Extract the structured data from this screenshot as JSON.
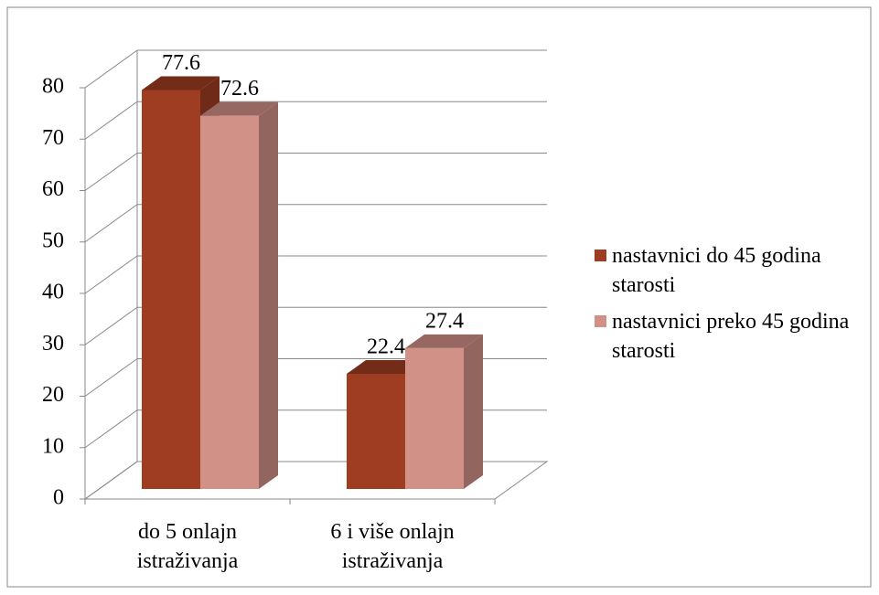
{
  "chart_data": {
    "type": "bar3d",
    "categories": [
      "do 5 onlajn istraživanja",
      "6 i više onlajn istraživanja"
    ],
    "series": [
      {
        "name": "nastavnici do 45 godina starosti",
        "color": "#9e3d22",
        "values": [
          77.6,
          22.4
        ]
      },
      {
        "name": "nastavnici preko 45 godina starosti",
        "color": "#d19187",
        "values": [
          72.6,
          27.4
        ]
      }
    ],
    "ylim": [
      0,
      80
    ],
    "yticks": [
      0,
      10,
      20,
      30,
      40,
      50,
      60,
      70,
      80
    ],
    "grid": true,
    "legend": "right"
  }
}
